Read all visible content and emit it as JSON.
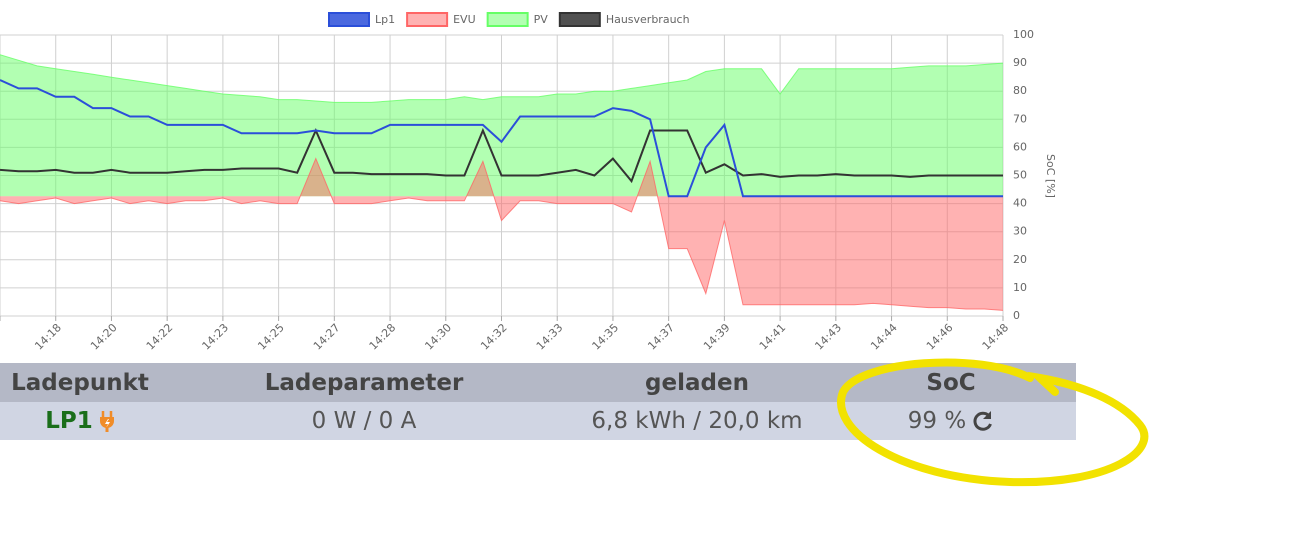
{
  "chart_data": {
    "type": "area",
    "categories": [
      null,
      null,
      null,
      "14:18",
      null,
      null,
      "14:20",
      null,
      null,
      "14:22",
      null,
      null,
      "14:23",
      null,
      null,
      "14:25",
      null,
      null,
      "14:27",
      null,
      null,
      "14:28",
      null,
      null,
      "14:30",
      null,
      null,
      "14:32",
      null,
      null,
      "14:33",
      null,
      null,
      "14:35",
      null,
      null,
      "14:37",
      null,
      null,
      "14:39",
      null,
      null,
      "14:41",
      null,
      null,
      "14:43",
      null,
      null,
      "14:44",
      null,
      null,
      "14:46",
      null,
      null,
      "14:48"
    ],
    "series": [
      {
        "name": "Lp1",
        "color": "#2b4fd9",
        "fill": false,
        "values": [
          84,
          81,
          81,
          78,
          78,
          74,
          74,
          71,
          71,
          68,
          68,
          68,
          68,
          65,
          65,
          65,
          65,
          66,
          65,
          65,
          65,
          68,
          68,
          68,
          68,
          68,
          68,
          62,
          71,
          71,
          71,
          71,
          71,
          74,
          73,
          70,
          42.6,
          42.6,
          60,
          68,
          42.6,
          42.6,
          42.6,
          42.6,
          42.6,
          42.6,
          42.6,
          42.6,
          42.6,
          42.6,
          42.6,
          42.6,
          42.6,
          42.6,
          42.6
        ]
      },
      {
        "name": "EVU",
        "color": "#ff6666",
        "fill": true,
        "values": [
          41,
          40,
          41,
          42,
          40,
          41,
          42,
          40,
          41,
          40,
          41,
          41,
          42,
          40,
          41,
          40,
          40,
          56,
          40,
          40,
          40,
          41,
          42,
          41,
          41,
          41,
          55,
          34,
          41,
          41,
          40,
          40,
          40,
          40,
          37,
          55,
          24,
          24,
          8,
          34,
          4,
          4,
          4,
          4,
          4,
          4,
          4,
          4.5,
          4,
          3.5,
          3,
          3,
          2.5,
          2.5,
          2
        ]
      },
      {
        "name": "PV",
        "color": "#66ff66",
        "fill": true,
        "values": [
          93,
          91,
          89,
          88,
          87,
          86,
          85,
          84,
          83,
          82,
          81,
          80,
          79,
          78.5,
          78,
          77,
          77,
          76.5,
          76,
          76,
          76,
          76.5,
          77,
          77,
          77,
          78,
          77,
          78,
          78,
          78,
          79,
          79,
          80,
          80,
          81,
          82,
          83,
          84,
          87,
          88,
          88,
          88,
          79,
          88,
          88,
          88,
          88,
          88,
          88,
          88.5,
          89,
          89,
          89,
          89.5,
          90
        ]
      },
      {
        "name": "Hausverbrauch",
        "color": "#333333",
        "fill": false,
        "values": [
          52,
          51.5,
          51.5,
          52,
          51,
          51,
          52,
          51,
          51,
          51,
          51.5,
          52,
          52,
          52.5,
          52.5,
          52.5,
          51,
          66,
          51,
          51,
          50.5,
          50.5,
          50.5,
          50.5,
          50,
          50,
          66,
          50,
          50,
          50,
          51,
          52,
          50,
          56,
          48,
          66,
          66,
          66,
          51,
          54,
          50,
          50.5,
          49.5,
          50,
          50,
          50.5,
          50,
          50,
          50,
          49.5,
          50,
          50,
          50,
          50,
          50
        ]
      }
    ],
    "y_label": "SoC [%]",
    "ylim": [
      0,
      100
    ],
    "yticks": [
      0,
      10,
      20,
      30,
      40,
      50,
      60,
      70,
      80,
      90,
      100
    ],
    "grid": true,
    "legend": "top"
  },
  "table": {
    "headers": [
      "Ladepunkt",
      "Ladeparameter",
      "geladen",
      "SoC"
    ],
    "rows": [
      [
        "LP1",
        "0 W / 0 A",
        "6,8 kWh / 20,0 km",
        "99 %"
      ]
    ]
  }
}
